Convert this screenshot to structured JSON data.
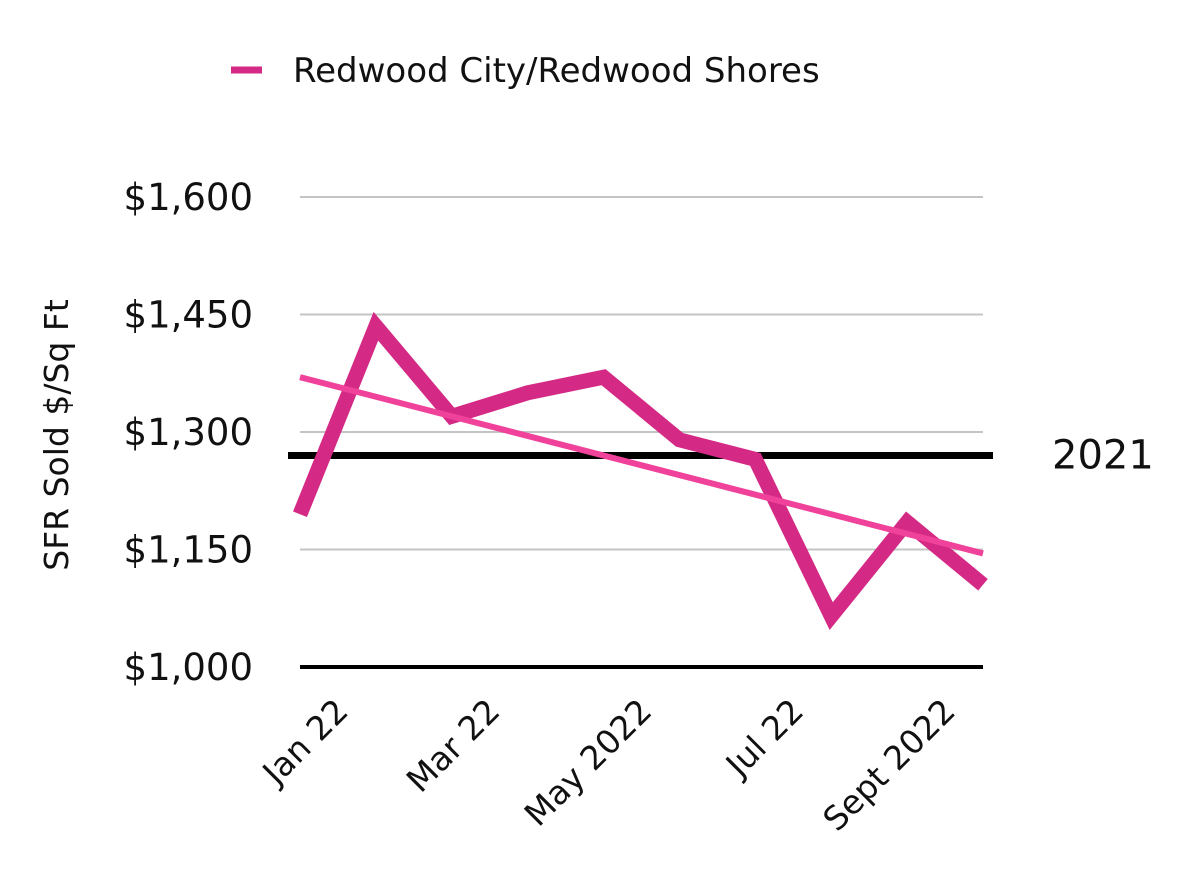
{
  "chart_data": {
    "type": "line",
    "title": "",
    "xlabel": "",
    "ylabel": "SFR Sold $/Sq Ft",
    "ylim": [
      1000,
      1600
    ],
    "yticks": [
      "$1,000",
      "$1,150",
      "$1,300",
      "$1,450",
      "$1,600"
    ],
    "ytick_values": [
      1000,
      1150,
      1300,
      1450,
      1600
    ],
    "x_tick_labels": [
      "Jan 22",
      "Mar 22",
      "May 2022",
      "Jul 22",
      "Sept 2022"
    ],
    "x_tick_indices": [
      0,
      2,
      4,
      6,
      8
    ],
    "grid": true,
    "legend": {
      "position": "top",
      "entries": [
        "Redwood City/Redwood Shores"
      ]
    },
    "series": [
      {
        "name": "Redwood City/Redwood Shores",
        "color": "#d42a85",
        "values": [
          1195,
          1435,
          1320,
          1350,
          1370,
          1290,
          1265,
          1065,
          1185,
          1105
        ]
      }
    ],
    "trendline": {
      "color": "#f0429a",
      "start": 1370,
      "end": 1145
    },
    "reference_line": {
      "label": "2021",
      "value": 1270,
      "color": "#000000"
    }
  }
}
